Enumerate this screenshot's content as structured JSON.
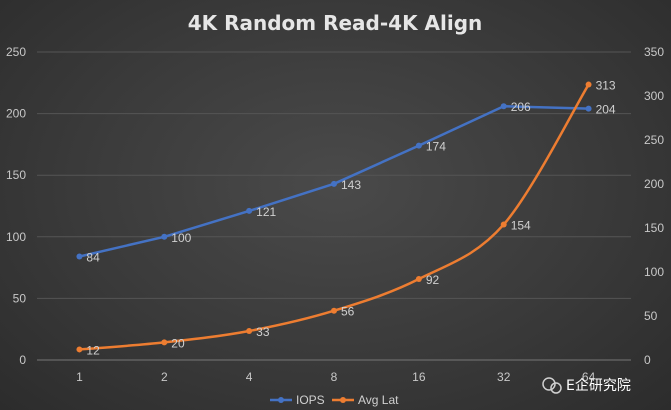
{
  "chart_data": {
    "type": "line",
    "title": "4K Random Read-4K Align",
    "categories": [
      "1",
      "2",
      "4",
      "8",
      "16",
      "32",
      "64"
    ],
    "series": [
      {
        "name": "IOPS",
        "axis": "left",
        "color": "#4472c4",
        "values": [
          84,
          100,
          121,
          143,
          174,
          206,
          204
        ]
      },
      {
        "name": "Avg Lat",
        "axis": "right",
        "color": "#ed7d31",
        "values": [
          12,
          20,
          33,
          56,
          92,
          154,
          313
        ]
      }
    ],
    "y_left": {
      "min": 0,
      "max": 250,
      "ticks": [
        0,
        50,
        100,
        150,
        200,
        250
      ]
    },
    "y_right": {
      "min": 0,
      "max": 350,
      "ticks": [
        0,
        50,
        100,
        150,
        200,
        250,
        300,
        350
      ]
    },
    "grid": true,
    "legend_position": "bottom"
  },
  "watermark": {
    "text": "E企研究院"
  }
}
